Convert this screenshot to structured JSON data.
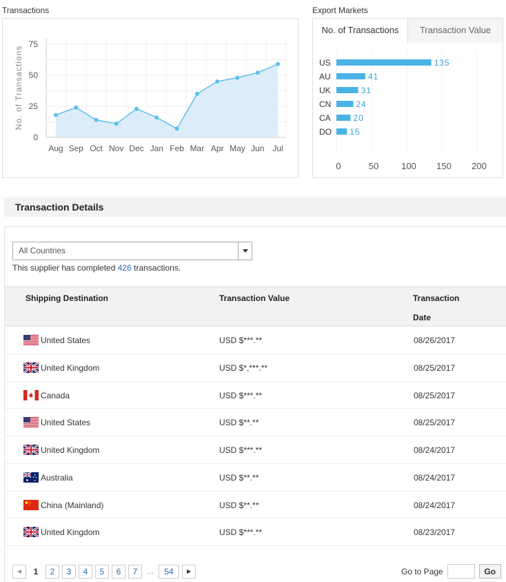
{
  "transactions_chart": {
    "title": "Transactions",
    "chart_data": {
      "type": "area",
      "categories": [
        "Aug",
        "Sep",
        "Oct",
        "Nov",
        "Dec",
        "Jan",
        "Feb",
        "Mar",
        "Apr",
        "May",
        "Jun",
        "Jul"
      ],
      "values": [
        18,
        24,
        14,
        11,
        23,
        16,
        7,
        35,
        45,
        48,
        52,
        59
      ],
      "ylabel": "No. of Transactions",
      "yticks": [
        0,
        25,
        50,
        75
      ],
      "ylim": [
        0,
        80
      ],
      "grid": true,
      "color": "#5bc0eb",
      "fill": "#dcedf9"
    }
  },
  "export_markets": {
    "title": "Export Markets",
    "tabs": [
      {
        "label": "No. of Transactions",
        "active": true
      },
      {
        "label": "Transaction Value",
        "active": false
      }
    ],
    "chart_data": {
      "type": "bar",
      "orientation": "horizontal",
      "categories": [
        "US",
        "AU",
        "UK",
        "CN",
        "CA",
        "DO"
      ],
      "values": [
        135,
        41,
        31,
        24,
        20,
        15
      ],
      "xticks": [
        0,
        50,
        100,
        150,
        200
      ],
      "xlim": [
        0,
        200
      ],
      "color": "#4ab3e6"
    }
  },
  "details": {
    "title": "Transaction Details",
    "country_select": {
      "value": "All Countries"
    },
    "summary": {
      "prefix": "This supplier has completed ",
      "count": "426",
      "suffix": " transactions."
    },
    "columns": {
      "destination": "Shipping Destination",
      "value": "Transaction Value",
      "date_line1": "Transaction",
      "date_line2": "Date"
    },
    "rows": [
      {
        "flag": "us",
        "country": "United States",
        "value": "USD $***.**",
        "date": "08/26/2017"
      },
      {
        "flag": "uk",
        "country": "United Kingdom",
        "value": "USD $*,***.**",
        "date": "08/25/2017"
      },
      {
        "flag": "ca",
        "country": "Canada",
        "value": "USD $***.**",
        "date": "08/25/2017"
      },
      {
        "flag": "us",
        "country": "United States",
        "value": "USD $**.**",
        "date": "08/25/2017"
      },
      {
        "flag": "uk",
        "country": "United Kingdom",
        "value": "USD $***.**",
        "date": "08/24/2017"
      },
      {
        "flag": "au",
        "country": "Australia",
        "value": "USD $**.**",
        "date": "08/24/2017"
      },
      {
        "flag": "cn",
        "country": "China (Mainland)",
        "value": "USD $**.**",
        "date": "08/24/2017"
      },
      {
        "flag": "uk",
        "country": "United Kingdom",
        "value": "USD $***.**",
        "date": "08/23/2017"
      }
    ],
    "pager": {
      "prev": "◀",
      "next": "▶",
      "pages": [
        "1",
        "2",
        "3",
        "4",
        "5",
        "6",
        "7"
      ],
      "current": "1",
      "ellipsis": "...",
      "last": "54",
      "goto_label": "Go to Page",
      "go_button": "Go"
    }
  }
}
